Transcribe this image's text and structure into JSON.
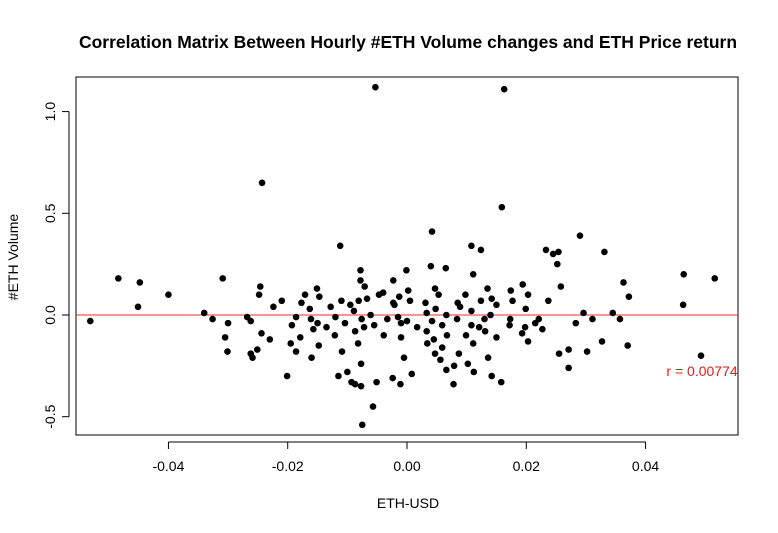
{
  "chart_data": {
    "type": "scatter",
    "title": "Correlation Matrix Between Hourly #ETH Volume changes and ETH Price return",
    "xlabel": "ETH-USD",
    "ylabel": "#ETH Volume",
    "xlim": [
      -0.0555,
      0.0555
    ],
    "ylim": [
      -0.59,
      1.17
    ],
    "xticks": [
      -0.04,
      -0.02,
      0.0,
      0.02,
      0.04
    ],
    "xtick_labels": [
      "-0.04",
      "-0.02",
      "0.00",
      "0.02",
      "0.04"
    ],
    "yticks": [
      -0.5,
      0.0,
      0.5,
      1.0
    ],
    "ytick_labels": [
      "-0.5",
      "0.0",
      "0.5",
      "1.0"
    ],
    "grid": false,
    "hline": {
      "y": 0.0,
      "color": "#e0302f"
    },
    "annotation": {
      "text": "r = 0.00774",
      "x": 0.0435,
      "y": -0.3,
      "color": "#e41a1c"
    },
    "point_color": "#000000",
    "points": [
      [
        -0.0053,
        1.12
      ],
      [
        0.0163,
        1.11
      ],
      [
        -0.0243,
        0.65
      ],
      [
        0.0159,
        0.53
      ],
      [
        0.0042,
        0.41
      ],
      [
        0.029,
        0.39
      ],
      [
        -0.0112,
        0.34
      ],
      [
        0.0108,
        0.34
      ],
      [
        0.0124,
        0.32
      ],
      [
        0.0233,
        0.32
      ],
      [
        0.0331,
        0.31
      ],
      [
        0.0245,
        0.3
      ],
      [
        0.0254,
        0.31
      ],
      [
        0.0252,
        0.25
      ],
      [
        0.004,
        0.24
      ],
      [
        -0.0078,
        0.22
      ],
      [
        -0.0001,
        0.22
      ],
      [
        0.0065,
        0.23
      ],
      [
        0.0464,
        0.2
      ],
      [
        0.0516,
        0.18
      ],
      [
        0.0111,
        0.2
      ],
      [
        -0.0484,
        0.18
      ],
      [
        -0.0309,
        0.18
      ],
      [
        -0.0078,
        0.17
      ],
      [
        -0.0023,
        0.17
      ],
      [
        -0.0448,
        0.16
      ],
      [
        0.0363,
        0.16
      ],
      [
        0.0194,
        0.15
      ],
      [
        -0.0071,
        0.14
      ],
      [
        -0.0246,
        0.14
      ],
      [
        0.0258,
        0.14
      ],
      [
        0.0135,
        0.13
      ],
      [
        0.0002,
        0.12
      ],
      [
        0.0174,
        0.12
      ],
      [
        0.0047,
        0.13
      ],
      [
        -0.004,
        0.11
      ],
      [
        -0.0151,
        0.13
      ],
      [
        -0.0047,
        0.1
      ],
      [
        -0.04,
        0.1
      ],
      [
        0.0372,
        0.09
      ],
      [
        -0.0248,
        0.1
      ],
      [
        -0.0171,
        0.1
      ],
      [
        0.0053,
        0.1
      ],
      [
        0.0203,
        0.1
      ],
      [
        -0.0013,
        0.09
      ],
      [
        -0.0147,
        0.09
      ],
      [
        0.0098,
        0.1
      ],
      [
        -0.0081,
        0.07
      ],
      [
        -0.0067,
        0.08
      ],
      [
        0.0177,
        0.07
      ],
      [
        0.0142,
        0.08
      ],
      [
        0.0124,
        0.07
      ],
      [
        0.0005,
        0.07
      ],
      [
        -0.0177,
        0.06
      ],
      [
        -0.011,
        0.07
      ],
      [
        -0.0023,
        0.06
      ],
      [
        -0.021,
        0.07
      ],
      [
        0.0031,
        0.06
      ],
      [
        0.0237,
        0.07
      ],
      [
        0.0085,
        0.06
      ],
      [
        0.0463,
        0.05
      ],
      [
        -0.0451,
        0.04
      ],
      [
        -0.0224,
        0.04
      ],
      [
        -0.0095,
        0.05
      ],
      [
        -0.0021,
        0.05
      ],
      [
        0.015,
        0.05
      ],
      [
        0.0089,
        0.04
      ],
      [
        0.0048,
        0.03
      ],
      [
        -0.0128,
        0.04
      ],
      [
        -0.0089,
        0.02
      ],
      [
        -0.0163,
        0.03
      ],
      [
        0.0199,
        0.03
      ],
      [
        0.0108,
        0.02
      ],
      [
        0.0296,
        0.01
      ],
      [
        0.0345,
        0.01
      ],
      [
        -0.034,
        0.01
      ],
      [
        -0.0061,
        0.0
      ],
      [
        0.0033,
        0.01
      ],
      [
        -0.012,
        -0.01
      ],
      [
        -0.0015,
        -0.01
      ],
      [
        0.014,
        0.0
      ],
      [
        0.0066,
        0.0
      ],
      [
        -0.0326,
        -0.02
      ],
      [
        -0.0268,
        -0.01
      ],
      [
        -0.0186,
        -0.01
      ],
      [
        -0.0161,
        -0.02
      ],
      [
        -0.0076,
        -0.02
      ],
      [
        -0.0033,
        -0.02
      ],
      [
        0.0,
        -0.03
      ],
      [
        0.0042,
        -0.03
      ],
      [
        0.0084,
        -0.02
      ],
      [
        0.013,
        -0.02
      ],
      [
        0.0173,
        -0.02
      ],
      [
        0.0221,
        -0.02
      ],
      [
        0.0311,
        -0.02
      ],
      [
        0.0357,
        -0.02
      ],
      [
        -0.0531,
        -0.03
      ],
      [
        -0.0262,
        -0.03
      ],
      [
        -0.015,
        -0.04
      ],
      [
        -0.0104,
        -0.04
      ],
      [
        -0.0055,
        -0.05
      ],
      [
        -0.001,
        -0.04
      ],
      [
        0.0059,
        -0.05
      ],
      [
        0.0108,
        -0.05
      ],
      [
        0.0172,
        -0.05
      ],
      [
        0.0215,
        -0.04
      ],
      [
        0.0283,
        -0.04
      ],
      [
        -0.03,
        -0.04
      ],
      [
        -0.0193,
        -0.05
      ],
      [
        -0.0135,
        -0.06
      ],
      [
        -0.0072,
        -0.06
      ],
      [
        0.0017,
        -0.06
      ],
      [
        0.0121,
        -0.06
      ],
      [
        0.0198,
        -0.06
      ],
      [
        0.0227,
        -0.07
      ],
      [
        -0.0157,
        -0.07
      ],
      [
        -0.0087,
        -0.08
      ],
      [
        0.0033,
        -0.08
      ],
      [
        0.0131,
        -0.08
      ],
      [
        0.0193,
        -0.09
      ],
      [
        -0.0244,
        -0.09
      ],
      [
        -0.0121,
        -0.1
      ],
      [
        -0.0039,
        -0.1
      ],
      [
        0.0067,
        -0.1
      ],
      [
        -0.0179,
        -0.11
      ],
      [
        -0.001,
        -0.11
      ],
      [
        0.0099,
        -0.1
      ],
      [
        0.015,
        -0.11
      ],
      [
        -0.0305,
        -0.11
      ],
      [
        -0.023,
        -0.12
      ],
      [
        0.0045,
        -0.12
      ],
      [
        0.0203,
        -0.13
      ],
      [
        -0.0195,
        -0.14
      ],
      [
        -0.0082,
        -0.14
      ],
      [
        0.0034,
        -0.14
      ],
      [
        0.0111,
        -0.14
      ],
      [
        0.0327,
        -0.13
      ],
      [
        -0.0148,
        -0.15
      ],
      [
        0.0059,
        -0.16
      ],
      [
        0.037,
        -0.15
      ],
      [
        -0.0251,
        -0.17
      ],
      [
        0.0271,
        -0.17
      ],
      [
        -0.0301,
        -0.18
      ],
      [
        -0.0262,
        -0.19
      ],
      [
        -0.0109,
        -0.18
      ],
      [
        -0.0186,
        -0.18
      ],
      [
        0.0047,
        -0.19
      ],
      [
        0.0087,
        -0.19
      ],
      [
        0.0302,
        -0.18
      ],
      [
        0.0255,
        -0.19
      ],
      [
        -0.0259,
        -0.21
      ],
      [
        -0.016,
        -0.21
      ],
      [
        -0.0005,
        -0.21
      ],
      [
        0.0056,
        -0.22
      ],
      [
        0.0136,
        -0.21
      ],
      [
        0.0493,
        -0.2
      ],
      [
        -0.0077,
        -0.24
      ],
      [
        0.0079,
        -0.25
      ],
      [
        0.0102,
        -0.24
      ],
      [
        0.0271,
        -0.26
      ],
      [
        0.0066,
        -0.27
      ],
      [
        0.0112,
        -0.28
      ],
      [
        -0.01,
        -0.28
      ],
      [
        -0.0201,
        -0.3
      ],
      [
        0.0008,
        -0.29
      ],
      [
        0.0142,
        -0.3
      ],
      [
        -0.0115,
        -0.3
      ],
      [
        -0.0024,
        -0.31
      ],
      [
        0.0158,
        -0.33
      ],
      [
        -0.0087,
        -0.34
      ],
      [
        -0.0077,
        -0.35
      ],
      [
        -0.0093,
        -0.33
      ],
      [
        -0.0051,
        -0.33
      ],
      [
        0.0078,
        -0.34
      ],
      [
        -0.0011,
        -0.34
      ],
      [
        -0.0057,
        -0.45
      ],
      [
        -0.0075,
        -0.54
      ]
    ]
  }
}
